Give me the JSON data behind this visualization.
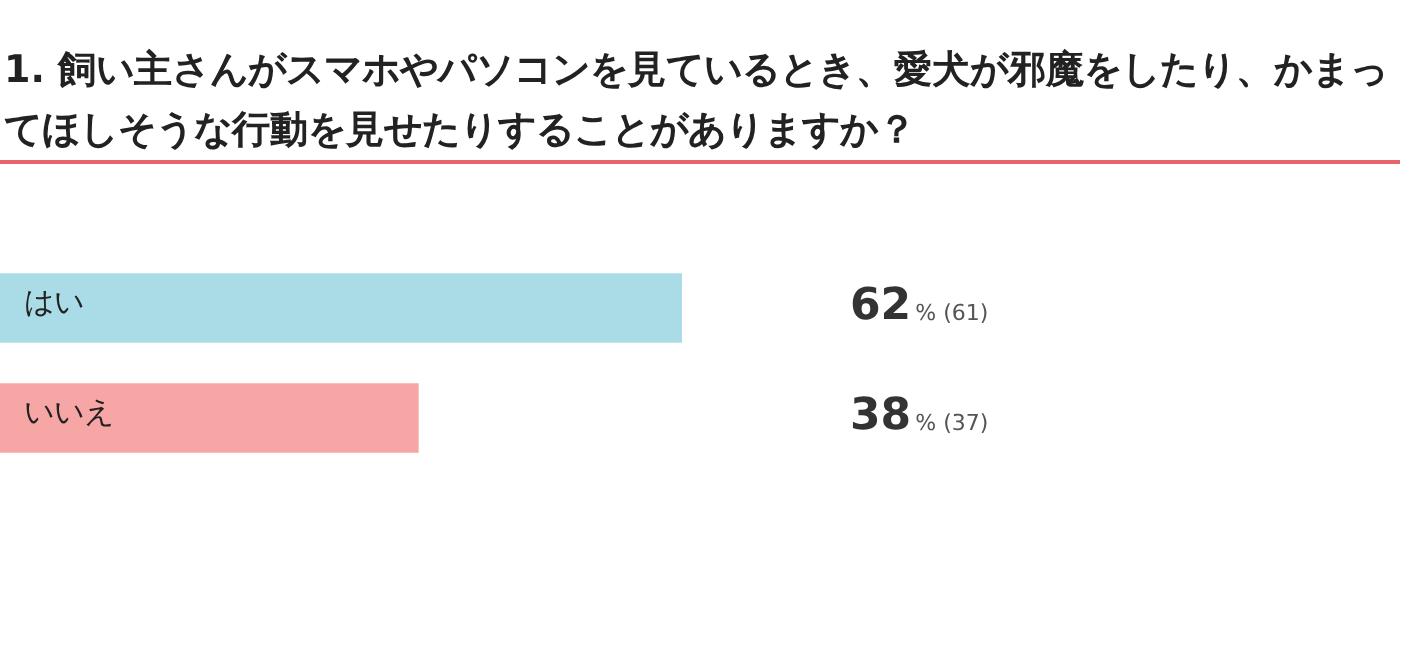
{
  "chart_data": {
    "type": "bar",
    "orientation": "horizontal",
    "title": "1. 飼い主さんがスマホやパソコンを見ているとき、愛犬が邪魔をしたり、かまってほしそうな行動を見せたりすることがありますか？",
    "categories": [
      "はい",
      "いいえ"
    ],
    "values": [
      62,
      38
    ],
    "colors": [
      "#a9dce6",
      "#f7a6a6"
    ],
    "value_labels": [
      "62% (61)",
      "38% (37)"
    ]
  }
}
